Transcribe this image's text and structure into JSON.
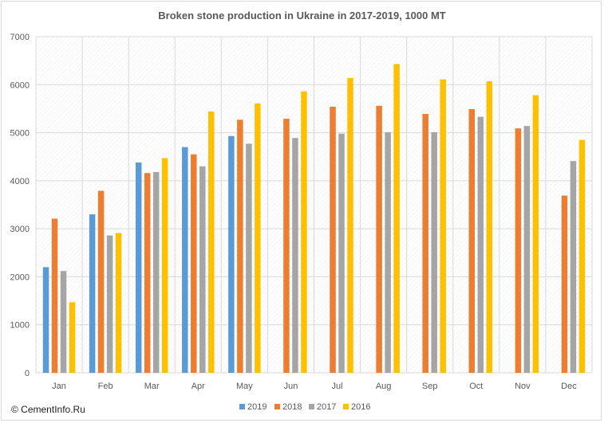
{
  "footer": {
    "credit": "© CementInfo.Ru"
  },
  "chart_data": {
    "type": "bar",
    "title": "Broken stone production in Ukraine in 2017-2019,  1000  MT",
    "xlabel": "",
    "ylabel": "",
    "ylim": [
      0,
      7000
    ],
    "yticks": [
      0,
      1000,
      2000,
      3000,
      4000,
      5000,
      6000,
      7000
    ],
    "grid": true,
    "legend_position": "bottom",
    "categories": [
      "Jan",
      "Feb",
      "Mar",
      "Apr",
      "May",
      "Jun",
      "Jul",
      "Aug",
      "Sep",
      "Oct",
      "Nov",
      "Dec"
    ],
    "series": [
      {
        "name": "2019",
        "color": "#5b9bd5",
        "values": [
          2200,
          3300,
          4380,
          4700,
          4930,
          null,
          null,
          null,
          null,
          null,
          null,
          null
        ]
      },
      {
        "name": "2018",
        "color": "#ed7d31",
        "values": [
          3210,
          3790,
          4160,
          4550,
          5270,
          5290,
          5540,
          5560,
          5390,
          5490,
          5090,
          3690
        ]
      },
      {
        "name": "2017",
        "color": "#a5a5a5",
        "values": [
          2120,
          2860,
          4180,
          4300,
          4770,
          4890,
          4980,
          5010,
          5010,
          5330,
          5140,
          4410
        ]
      },
      {
        "name": "2016",
        "color": "#ffc000",
        "values": [
          1470,
          2910,
          4470,
          5440,
          5610,
          5860,
          6140,
          6430,
          6110,
          6070,
          5780,
          4850
        ]
      }
    ]
  }
}
